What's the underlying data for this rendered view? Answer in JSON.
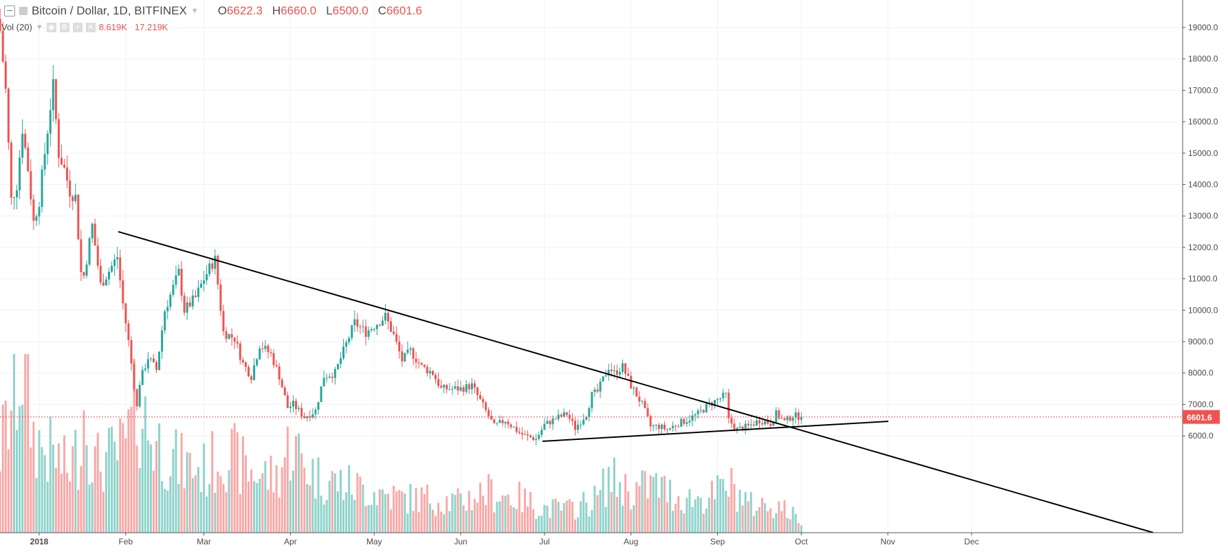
{
  "header": {
    "symbol_title": "Bitcoin / Dollar, 1D, BITFINEX",
    "open_label": "O",
    "open": "6622.3",
    "high_label": "H",
    "high": "6660.0",
    "low_label": "L",
    "low": "6500.0",
    "close_label": "C",
    "close": "6601.6"
  },
  "volume_legend": {
    "label": "Vol (20)",
    "value": "8.619K",
    "ma": "17.219K"
  },
  "colors": {
    "up": "#26a69a",
    "down": "#ef5350",
    "up_vol": "#8fd3cb",
    "down_vol": "#f7a9a7",
    "grid": "#eef2f6",
    "trendline": "#000000"
  },
  "chart_data": {
    "type": "candlestick",
    "title": "Bitcoin / Dollar, 1D, BITFINEX",
    "ylim": [
      5000,
      19500
    ],
    "y_ticks": [
      "19000.0",
      "18000.0",
      "17000.0",
      "16000.0",
      "15000.0",
      "14000.0",
      "13000.0",
      "12000.0",
      "11000.0",
      "10000.0",
      "9000.0",
      "8000.0",
      "7000.0",
      "6000.0"
    ],
    "x_ticks": [
      {
        "label": "2018",
        "day": 0
      },
      {
        "label": "Feb",
        "day": 31
      },
      {
        "label": "Mar",
        "day": 59
      },
      {
        "label": "Apr",
        "day": 90
      },
      {
        "label": "May",
        "day": 120
      },
      {
        "label": "Jun",
        "day": 151
      },
      {
        "label": "Jul",
        "day": 181
      },
      {
        "label": "Aug",
        "day": 212
      },
      {
        "label": "Sep",
        "day": 243
      },
      {
        "label": "Oct",
        "day": 273
      },
      {
        "label": "Nov",
        "day": 304
      },
      {
        "label": "Dec",
        "day": 334
      }
    ],
    "last_price": 6601.6,
    "last_price_label": "6601.6",
    "close_anchors_day_price": [
      [
        -14,
        18900
      ],
      [
        -12,
        17000
      ],
      [
        -10,
        13500
      ],
      [
        -8,
        14000
      ],
      [
        -6,
        15800
      ],
      [
        -4,
        14500
      ],
      [
        -2,
        12800
      ],
      [
        0,
        13500
      ],
      [
        2,
        15000
      ],
      [
        4,
        16500
      ],
      [
        5,
        17100
      ],
      [
        7,
        15000
      ],
      [
        9,
        14500
      ],
      [
        11,
        13800
      ],
      [
        13,
        13600
      ],
      [
        15,
        11200
      ],
      [
        16,
        11100
      ],
      [
        19,
        12700
      ],
      [
        22,
        10800
      ],
      [
        26,
        11400
      ],
      [
        28,
        11700
      ],
      [
        30,
        10200
      ],
      [
        32,
        9000
      ],
      [
        35,
        6900
      ],
      [
        36,
        7700
      ],
      [
        39,
        8500
      ],
      [
        42,
        8100
      ],
      [
        45,
        10000
      ],
      [
        50,
        11200
      ],
      [
        52,
        10000
      ],
      [
        56,
        10400
      ],
      [
        59,
        11000
      ],
      [
        62,
        11500
      ],
      [
        63,
        11600
      ],
      [
        66,
        9300
      ],
      [
        70,
        9100
      ],
      [
        73,
        8300
      ],
      [
        76,
        7900
      ],
      [
        79,
        8900
      ],
      [
        83,
        8600
      ],
      [
        86,
        7900
      ],
      [
        89,
        6900
      ],
      [
        91,
        7000
      ],
      [
        95,
        6600
      ],
      [
        99,
        6800
      ],
      [
        102,
        7900
      ],
      [
        106,
        8000
      ],
      [
        109,
        8700
      ],
      [
        113,
        9600
      ],
      [
        117,
        9300
      ],
      [
        124,
        9800
      ],
      [
        127,
        9200
      ],
      [
        130,
        8400
      ],
      [
        133,
        8700
      ],
      [
        137,
        8200
      ],
      [
        141,
        8000
      ],
      [
        144,
        7500
      ],
      [
        148,
        7500
      ],
      [
        151,
        7500
      ],
      [
        155,
        7600
      ],
      [
        160,
        6800
      ],
      [
        163,
        6300
      ],
      [
        167,
        6500
      ],
      [
        172,
        6100
      ],
      [
        174,
        6000
      ],
      [
        178,
        5900
      ],
      [
        181,
        6350
      ],
      [
        185,
        6550
      ],
      [
        189,
        6700
      ],
      [
        192,
        6250
      ],
      [
        196,
        6700
      ],
      [
        198,
        7300
      ],
      [
        200,
        7400
      ],
      [
        204,
        8200
      ],
      [
        206,
        8000
      ],
      [
        209,
        8200
      ],
      [
        212,
        7600
      ],
      [
        216,
        7000
      ],
      [
        219,
        6300
      ],
      [
        222,
        6300
      ],
      [
        225,
        6200
      ],
      [
        229,
        6400
      ],
      [
        232,
        6500
      ],
      [
        236,
        6700
      ],
      [
        240,
        7000
      ],
      [
        246,
        7300
      ],
      [
        247,
        6500
      ],
      [
        250,
        6200
      ],
      [
        254,
        6300
      ],
      [
        258,
        6500
      ],
      [
        262,
        6400
      ],
      [
        264,
        6700
      ],
      [
        267,
        6450
      ],
      [
        270,
        6650
      ],
      [
        273,
        6601.6
      ]
    ],
    "volume_anchors_day_k": [
      [
        -14,
        60
      ],
      [
        -10,
        90
      ],
      [
        -6,
        127
      ],
      [
        -2,
        70
      ],
      [
        2,
        60
      ],
      [
        6,
        55
      ],
      [
        10,
        45
      ],
      [
        14,
        60
      ],
      [
        16,
        90
      ],
      [
        20,
        50
      ],
      [
        26,
        55
      ],
      [
        30,
        60
      ],
      [
        33,
        75
      ],
      [
        35,
        95
      ],
      [
        40,
        70
      ],
      [
        50,
        50
      ],
      [
        60,
        45
      ],
      [
        66,
        60
      ],
      [
        75,
        45
      ],
      [
        85,
        40
      ],
      [
        90,
        65
      ],
      [
        95,
        50
      ],
      [
        100,
        40
      ],
      [
        110,
        35
      ],
      [
        120,
        30
      ],
      [
        130,
        25
      ],
      [
        140,
        25
      ],
      [
        150,
        22
      ],
      [
        160,
        30
      ],
      [
        172,
        25
      ],
      [
        180,
        18
      ],
      [
        190,
        17
      ],
      [
        200,
        25
      ],
      [
        204,
        40
      ],
      [
        212,
        30
      ],
      [
        220,
        35
      ],
      [
        230,
        25
      ],
      [
        240,
        25
      ],
      [
        247,
        35
      ],
      [
        255,
        20
      ],
      [
        265,
        20
      ],
      [
        273,
        8.6
      ]
    ],
    "trendlines": [
      {
        "name": "descending-resistance",
        "p1": [
          28.3,
          12500
        ],
        "p2": [
          306,
          5324
        ]
      },
      {
        "name": "ascending-support",
        "p1": [
          180.3,
          5827
        ],
        "p2": [
          304.2,
          6462
        ]
      }
    ]
  }
}
